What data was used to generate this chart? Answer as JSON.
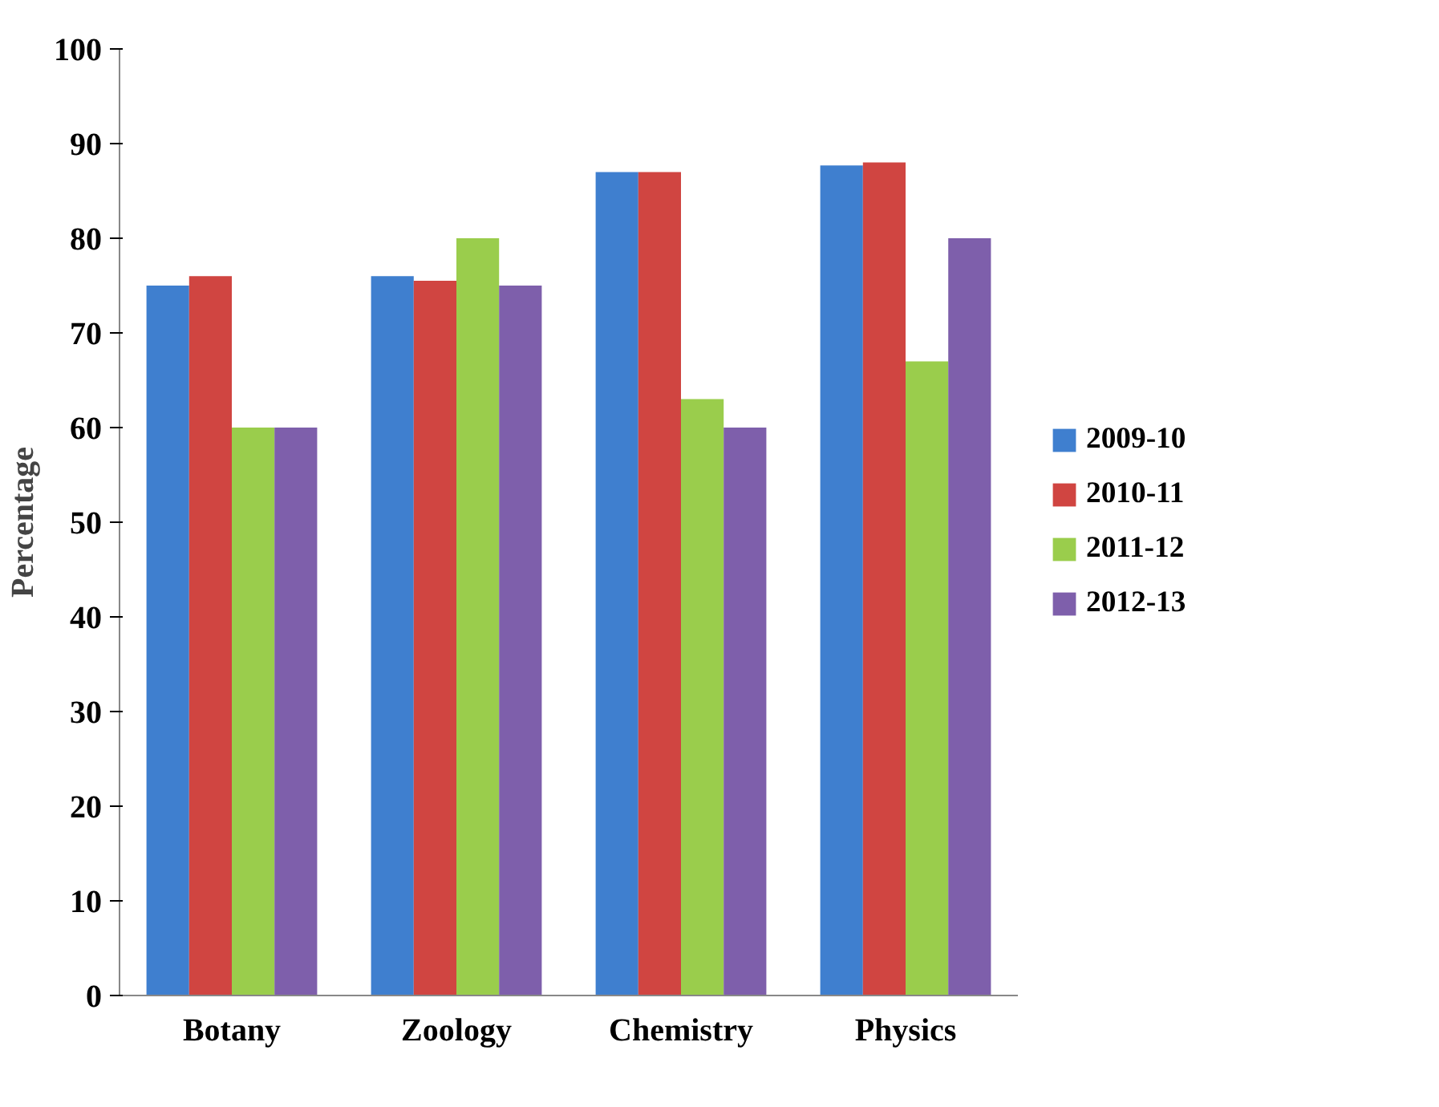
{
  "chart_data": {
    "type": "bar",
    "ylabel": "Percentage",
    "categories": [
      "Botany",
      "Zoology",
      "Chemistry",
      "Physics"
    ],
    "series": [
      {
        "name": "2009-10",
        "color": "#3f7fcf",
        "values": [
          75,
          76,
          87,
          87.7
        ]
      },
      {
        "name": "2010-11",
        "color": "#d04541",
        "values": [
          76,
          75.5,
          87,
          88
        ]
      },
      {
        "name": "2011-12",
        "color": "#9acd4c",
        "values": [
          60,
          80,
          63,
          67
        ]
      },
      {
        "name": "2012-13",
        "color": "#7e5fab",
        "values": [
          60,
          75,
          60,
          80
        ]
      }
    ],
    "ylim": [
      0,
      100
    ],
    "yticks": [
      0,
      10,
      20,
      30,
      40,
      50,
      60,
      70,
      80,
      90,
      100
    ],
    "grid": false,
    "legend": "right"
  }
}
